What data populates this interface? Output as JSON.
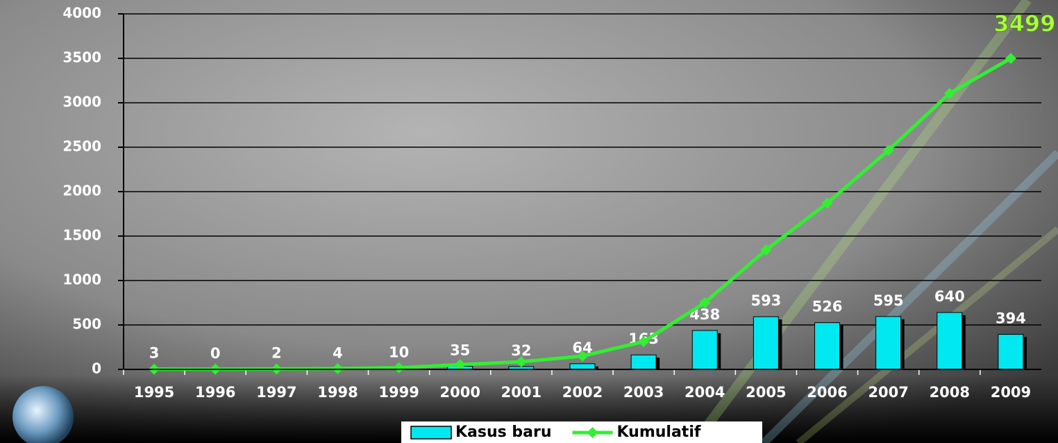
{
  "chart_data": {
    "type": "combo",
    "categories": [
      "1995",
      "1996",
      "1997",
      "1998",
      "1999",
      "2000",
      "2001",
      "2002",
      "2003",
      "2004",
      "2005",
      "2006",
      "2007",
      "2008",
      "2009"
    ],
    "series": [
      {
        "name": "Kasus baru",
        "type": "bar",
        "color": "#00e8f0",
        "data_labels": true,
        "values": [
          3,
          0,
          2,
          4,
          10,
          35,
          32,
          64,
          163,
          438,
          593,
          526,
          595,
          640,
          394
        ]
      },
      {
        "name": "Kumulatif",
        "type": "line",
        "color": "#33ee33",
        "label_last": true,
        "values": [
          3,
          3,
          5,
          9,
          19,
          54,
          86,
          150,
          313,
          751,
          1344,
          1870,
          2465,
          3105,
          3499
        ]
      }
    ],
    "ylim": [
      0,
      4000
    ],
    "yticks": [
      0,
      500,
      1000,
      1500,
      2000,
      2500,
      3000,
      3500,
      4000
    ],
    "grid": true,
    "legend": "bottom"
  }
}
